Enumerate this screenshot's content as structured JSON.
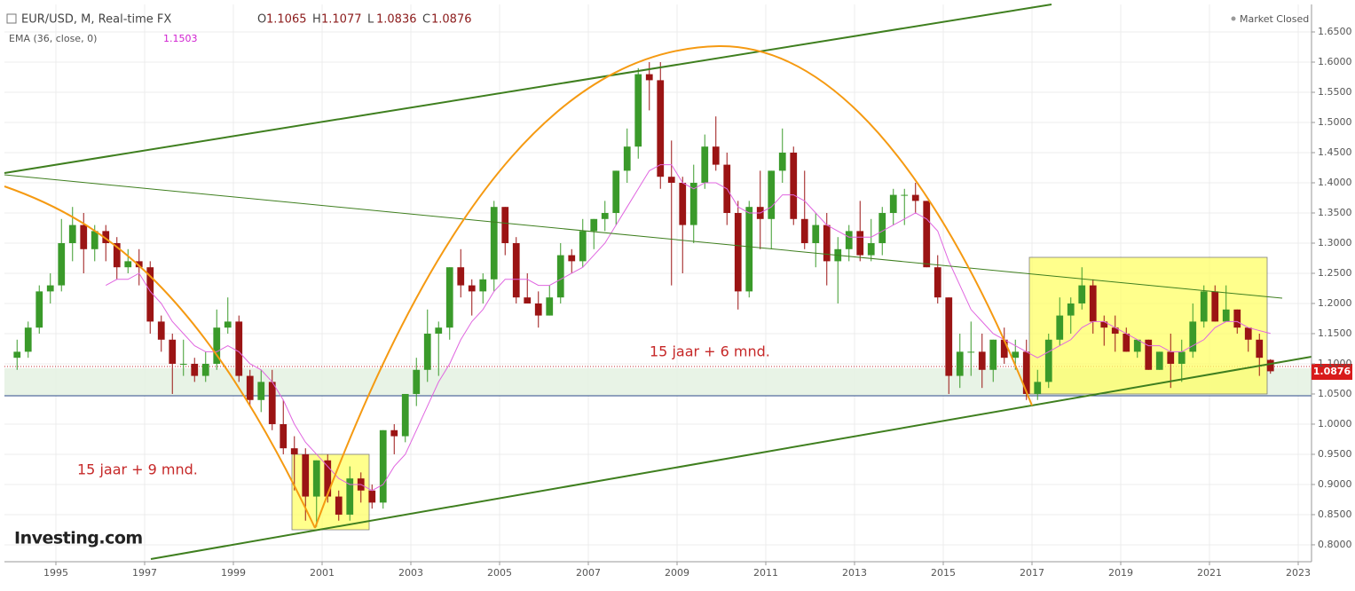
{
  "chart_data": {
    "type": "candlestick",
    "title": "EUR/USD, M, Real-time FX",
    "ohlc_labels": [
      "O",
      "H",
      "L",
      "C"
    ],
    "status": "Market Closed",
    "annotations": [
      "15 jaar + 9 mnd.",
      "15 jaar + 6 mnd."
    ],
    "brand": "Investing.com",
    "up_color": "#3a9a2a",
    "down_color": "#9b1414",
    "xlim": [
      1993.84,
      2023.3
    ],
    "xticks": [
      1995,
      1997,
      1999,
      2001,
      2003,
      2005,
      2007,
      2009,
      2011,
      2013,
      2015,
      2017,
      2019,
      2021,
      2023
    ],
    "ylim": [
      0.772,
      1.6956
    ],
    "yticks": [
      {
        "value": 0.8,
        "label": "0.8000"
      },
      {
        "value": 0.85,
        "label": "0.8500"
      },
      {
        "value": 0.9,
        "label": "0.9000"
      },
      {
        "value": 0.95,
        "label": "0.9500"
      },
      {
        "value": 1.0,
        "label": "1.0000"
      },
      {
        "value": 1.05,
        "label": "1.0500"
      },
      {
        "value": 1.1,
        "label": "1.1000"
      },
      {
        "value": 1.15,
        "label": "1.1500"
      },
      {
        "value": 1.2,
        "label": "1.2000"
      },
      {
        "value": 1.25,
        "label": "1.2500"
      },
      {
        "value": 1.3,
        "label": "1.3000"
      },
      {
        "value": 1.35,
        "label": "1.3500"
      },
      {
        "value": 1.4,
        "label": "1.4000"
      },
      {
        "value": 1.45,
        "label": "1.4500"
      },
      {
        "value": 1.5,
        "label": "1.5000"
      },
      {
        "value": 1.55,
        "label": "1.5500"
      },
      {
        "value": 1.6,
        "label": "1.6000"
      },
      {
        "value": 1.65,
        "label": "1.6500"
      }
    ],
    "grid": true,
    "x": [
      1994.125,
      1994.375,
      1994.625,
      1994.875,
      1995.125,
      1995.375,
      1995.625,
      1995.875,
      1996.125,
      1996.375,
      1996.625,
      1996.875,
      1997.125,
      1997.375,
      1997.625,
      1997.875,
      1998.125,
      1998.375,
      1998.625,
      1998.875,
      1999.125,
      1999.375,
      1999.625,
      1999.875,
      2000.125,
      2000.375,
      2000.625,
      2000.875,
      2001.125,
      2001.375,
      2001.625,
      2001.875,
      2002.125,
      2002.375,
      2002.625,
      2002.875,
      2003.125,
      2003.375,
      2003.625,
      2003.875,
      2004.125,
      2004.375,
      2004.625,
      2004.875,
      2005.125,
      2005.375,
      2005.625,
      2005.875,
      2006.125,
      2006.375,
      2006.625,
      2006.875,
      2007.125,
      2007.375,
      2007.625,
      2007.875,
      2008.125,
      2008.375,
      2008.625,
      2008.875,
      2009.125,
      2009.375,
      2009.625,
      2009.875,
      2010.125,
      2010.375,
      2010.625,
      2010.875,
      2011.125,
      2011.375,
      2011.625,
      2011.875,
      2012.125,
      2012.375,
      2012.625,
      2012.875,
      2013.125,
      2013.375,
      2013.625,
      2013.875,
      2014.125,
      2014.375,
      2014.625,
      2014.875,
      2015.125,
      2015.375,
      2015.625,
      2015.875,
      2016.125,
      2016.375,
      2016.625,
      2016.875,
      2017.125,
      2017.375,
      2017.625,
      2017.875,
      2018.125,
      2018.375,
      2018.625,
      2018.875,
      2019.125,
      2019.375,
      2019.625,
      2019.875,
      2020.125,
      2020.375,
      2020.625,
      2020.875,
      2021.125,
      2021.375,
      2021.625,
      2021.875,
      2022.125,
      2022.375
    ],
    "ohlc": [
      [
        1.11,
        1.14,
        1.09,
        1.12
      ],
      [
        1.12,
        1.17,
        1.11,
        1.16
      ],
      [
        1.16,
        1.23,
        1.15,
        1.22
      ],
      [
        1.22,
        1.25,
        1.2,
        1.23
      ],
      [
        1.23,
        1.34,
        1.22,
        1.3
      ],
      [
        1.3,
        1.36,
        1.27,
        1.33
      ],
      [
        1.33,
        1.35,
        1.25,
        1.29
      ],
      [
        1.29,
        1.33,
        1.27,
        1.32
      ],
      [
        1.32,
        1.33,
        1.27,
        1.3
      ],
      [
        1.3,
        1.31,
        1.24,
        1.26
      ],
      [
        1.26,
        1.29,
        1.25,
        1.27
      ],
      [
        1.27,
        1.29,
        1.23,
        1.26
      ],
      [
        1.26,
        1.27,
        1.15,
        1.17
      ],
      [
        1.17,
        1.18,
        1.12,
        1.14
      ],
      [
        1.14,
        1.15,
        1.05,
        1.1
      ],
      [
        1.1,
        1.14,
        1.08,
        1.1
      ],
      [
        1.1,
        1.11,
        1.07,
        1.08
      ],
      [
        1.08,
        1.12,
        1.07,
        1.1
      ],
      [
        1.1,
        1.19,
        1.09,
        1.16
      ],
      [
        1.16,
        1.21,
        1.15,
        1.17
      ],
      [
        1.17,
        1.18,
        1.07,
        1.08
      ],
      [
        1.08,
        1.09,
        1.03,
        1.04
      ],
      [
        1.04,
        1.09,
        1.02,
        1.07
      ],
      [
        1.07,
        1.09,
        0.99,
        1.0
      ],
      [
        1.0,
        1.04,
        0.95,
        0.96
      ],
      [
        0.96,
        0.98,
        0.89,
        0.95
      ],
      [
        0.95,
        0.96,
        0.84,
        0.88
      ],
      [
        0.88,
        0.94,
        0.83,
        0.94
      ],
      [
        0.94,
        0.95,
        0.87,
        0.88
      ],
      [
        0.88,
        0.89,
        0.84,
        0.85
      ],
      [
        0.85,
        0.93,
        0.84,
        0.91
      ],
      [
        0.91,
        0.92,
        0.87,
        0.89
      ],
      [
        0.89,
        0.9,
        0.86,
        0.87
      ],
      [
        0.87,
        0.99,
        0.86,
        0.99
      ],
      [
        0.99,
        1.0,
        0.95,
        0.98
      ],
      [
        0.98,
        1.05,
        0.97,
        1.05
      ],
      [
        1.05,
        1.11,
        1.03,
        1.09
      ],
      [
        1.09,
        1.19,
        1.07,
        1.15
      ],
      [
        1.15,
        1.17,
        1.08,
        1.16
      ],
      [
        1.16,
        1.26,
        1.14,
        1.26
      ],
      [
        1.26,
        1.29,
        1.21,
        1.23
      ],
      [
        1.23,
        1.24,
        1.18,
        1.22
      ],
      [
        1.22,
        1.25,
        1.2,
        1.24
      ],
      [
        1.24,
        1.37,
        1.22,
        1.36
      ],
      [
        1.36,
        1.36,
        1.28,
        1.3
      ],
      [
        1.3,
        1.31,
        1.2,
        1.21
      ],
      [
        1.21,
        1.25,
        1.2,
        1.2
      ],
      [
        1.2,
        1.22,
        1.16,
        1.18
      ],
      [
        1.18,
        1.23,
        1.18,
        1.21
      ],
      [
        1.21,
        1.3,
        1.2,
        1.28
      ],
      [
        1.28,
        1.29,
        1.25,
        1.27
      ],
      [
        1.27,
        1.34,
        1.26,
        1.32
      ],
      [
        1.32,
        1.34,
        1.29,
        1.34
      ],
      [
        1.34,
        1.37,
        1.32,
        1.35
      ],
      [
        1.35,
        1.42,
        1.33,
        1.42
      ],
      [
        1.42,
        1.49,
        1.4,
        1.46
      ],
      [
        1.46,
        1.59,
        1.44,
        1.58
      ],
      [
        1.58,
        1.6,
        1.52,
        1.57
      ],
      [
        1.57,
        1.6,
        1.39,
        1.41
      ],
      [
        1.41,
        1.47,
        1.23,
        1.4
      ],
      [
        1.4,
        1.41,
        1.25,
        1.33
      ],
      [
        1.33,
        1.43,
        1.3,
        1.4
      ],
      [
        1.4,
        1.48,
        1.39,
        1.46
      ],
      [
        1.46,
        1.51,
        1.42,
        1.43
      ],
      [
        1.43,
        1.45,
        1.33,
        1.35
      ],
      [
        1.35,
        1.37,
        1.19,
        1.22
      ],
      [
        1.22,
        1.37,
        1.21,
        1.36
      ],
      [
        1.36,
        1.42,
        1.29,
        1.34
      ],
      [
        1.34,
        1.42,
        1.29,
        1.42
      ],
      [
        1.42,
        1.49,
        1.4,
        1.45
      ],
      [
        1.45,
        1.46,
        1.33,
        1.34
      ],
      [
        1.34,
        1.42,
        1.29,
        1.3
      ],
      [
        1.3,
        1.35,
        1.26,
        1.33
      ],
      [
        1.33,
        1.35,
        1.23,
        1.27
      ],
      [
        1.27,
        1.31,
        1.2,
        1.29
      ],
      [
        1.29,
        1.33,
        1.27,
        1.32
      ],
      [
        1.32,
        1.37,
        1.27,
        1.28
      ],
      [
        1.28,
        1.34,
        1.27,
        1.3
      ],
      [
        1.3,
        1.36,
        1.28,
        1.35
      ],
      [
        1.35,
        1.39,
        1.33,
        1.38
      ],
      [
        1.38,
        1.39,
        1.33,
        1.38
      ],
      [
        1.38,
        1.4,
        1.35,
        1.37
      ],
      [
        1.37,
        1.37,
        1.26,
        1.26
      ],
      [
        1.26,
        1.28,
        1.2,
        1.21
      ],
      [
        1.21,
        1.21,
        1.05,
        1.08
      ],
      [
        1.08,
        1.15,
        1.06,
        1.12
      ],
      [
        1.12,
        1.17,
        1.08,
        1.12
      ],
      [
        1.12,
        1.15,
        1.06,
        1.09
      ],
      [
        1.09,
        1.14,
        1.07,
        1.14
      ],
      [
        1.14,
        1.16,
        1.1,
        1.11
      ],
      [
        1.11,
        1.14,
        1.09,
        1.12
      ],
      [
        1.12,
        1.14,
        1.04,
        1.05
      ],
      [
        1.05,
        1.09,
        1.04,
        1.07
      ],
      [
        1.07,
        1.15,
        1.06,
        1.14
      ],
      [
        1.14,
        1.21,
        1.13,
        1.18
      ],
      [
        1.18,
        1.21,
        1.15,
        1.2
      ],
      [
        1.2,
        1.26,
        1.19,
        1.23
      ],
      [
        1.23,
        1.24,
        1.15,
        1.17
      ],
      [
        1.17,
        1.18,
        1.13,
        1.16
      ],
      [
        1.16,
        1.18,
        1.12,
        1.15
      ],
      [
        1.15,
        1.16,
        1.12,
        1.12
      ],
      [
        1.12,
        1.14,
        1.11,
        1.14
      ],
      [
        1.14,
        1.14,
        1.09,
        1.09
      ],
      [
        1.09,
        1.12,
        1.09,
        1.12
      ],
      [
        1.12,
        1.15,
        1.06,
        1.1
      ],
      [
        1.1,
        1.14,
        1.07,
        1.12
      ],
      [
        1.12,
        1.2,
        1.11,
        1.17
      ],
      [
        1.17,
        1.23,
        1.16,
        1.22
      ],
      [
        1.22,
        1.23,
        1.17,
        1.17
      ],
      [
        1.17,
        1.23,
        1.17,
        1.19
      ],
      [
        1.19,
        1.19,
        1.15,
        1.16
      ],
      [
        1.16,
        1.16,
        1.12,
        1.14
      ],
      [
        1.14,
        1.15,
        1.08,
        1.11
      ],
      [
        1.1065,
        1.1077,
        1.0836,
        1.0876
      ]
    ],
    "series": [
      {
        "name": "EMA (36, close, 0)",
        "color": "#e066e0",
        "values": [
          null,
          null,
          null,
          null,
          null,
          null,
          null,
          null,
          1.23,
          1.24,
          1.24,
          1.25,
          1.22,
          1.2,
          1.17,
          1.15,
          1.13,
          1.12,
          1.12,
          1.13,
          1.12,
          1.1,
          1.09,
          1.07,
          1.04,
          1.0,
          0.97,
          0.95,
          0.93,
          0.91,
          0.9,
          0.9,
          0.89,
          0.9,
          0.93,
          0.95,
          0.99,
          1.03,
          1.07,
          1.1,
          1.14,
          1.17,
          1.19,
          1.22,
          1.24,
          1.24,
          1.24,
          1.23,
          1.23,
          1.24,
          1.25,
          1.26,
          1.28,
          1.3,
          1.33,
          1.36,
          1.39,
          1.42,
          1.43,
          1.43,
          1.4,
          1.39,
          1.4,
          1.4,
          1.39,
          1.36,
          1.35,
          1.35,
          1.36,
          1.38,
          1.38,
          1.37,
          1.35,
          1.33,
          1.32,
          1.31,
          1.31,
          1.31,
          1.32,
          1.33,
          1.34,
          1.35,
          1.34,
          1.32,
          1.27,
          1.23,
          1.19,
          1.17,
          1.15,
          1.14,
          1.13,
          1.12,
          1.11,
          1.12,
          1.13,
          1.14,
          1.16,
          1.17,
          1.17,
          1.16,
          1.15,
          1.14,
          1.13,
          1.13,
          1.12,
          1.12,
          1.13,
          1.14,
          1.16,
          1.17,
          1.17,
          1.16,
          1.155,
          1.1503
        ]
      }
    ]
  }
}
